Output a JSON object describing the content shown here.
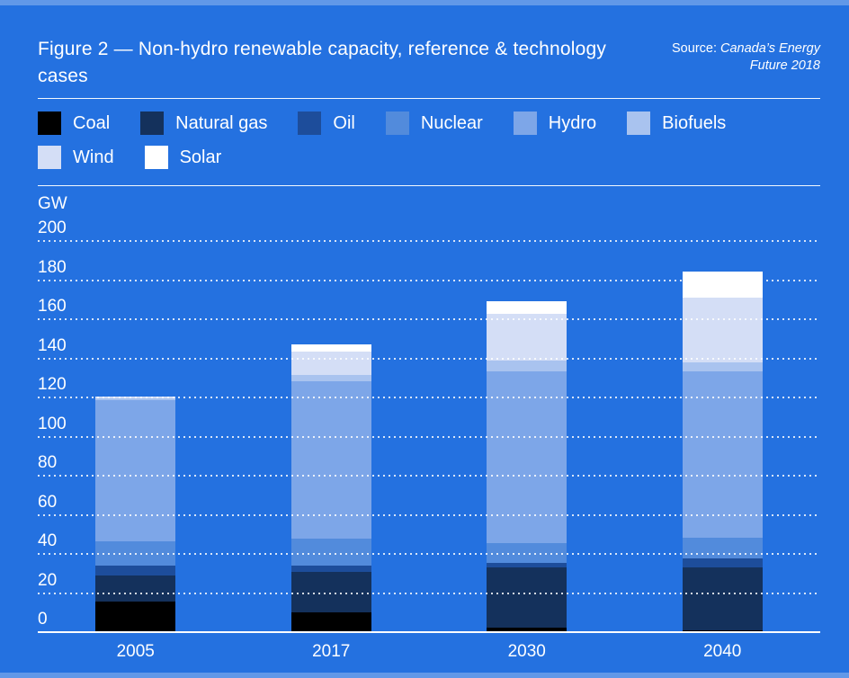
{
  "figure": {
    "title": "Figure 2 — Non-hydro renewable capacity, reference & technology cases",
    "source_prefix": "Source: ",
    "source_name": "Canada’s Energy Future 2018"
  },
  "chart_data": {
    "type": "bar",
    "stacked": true,
    "title": "Figure 2 — Non-hydro renewable capacity, reference & technology cases",
    "unit_label": "GW",
    "xlabel": "",
    "ylabel": "GW",
    "ylim": [
      0,
      200
    ],
    "ytick_step": 20,
    "gridlines": "dotted-white-horizontal",
    "legend_position": "top",
    "background_color": "#2471E0",
    "categories": [
      "2005",
      "2017",
      "2030",
      "2040"
    ],
    "series": [
      {
        "name": "Coal",
        "color": "#000000",
        "values": [
          15.5,
          10.0,
          2.5,
          1.0
        ]
      },
      {
        "name": "Natural gas",
        "color": "#14315C",
        "values": [
          13.5,
          20.5,
          31.0,
          32.0
        ]
      },
      {
        "name": "Oil",
        "color": "#1D4D9B",
        "values": [
          5.0,
          3.0,
          2.5,
          4.5
        ]
      },
      {
        "name": "Nuclear",
        "color": "#528BDC",
        "values": [
          12.5,
          14.0,
          10.0,
          10.5
        ]
      },
      {
        "name": "Hydro",
        "color": "#7DA6E8",
        "values": [
          72.0,
          80.5,
          88.0,
          85.0
        ]
      },
      {
        "name": "Biofuels",
        "color": "#A9C3EF",
        "values": [
          1.0,
          3.0,
          5.5,
          4.5
        ]
      },
      {
        "name": "Wind",
        "color": "#D4DEF6",
        "values": [
          1.0,
          12.0,
          24.0,
          33.0
        ]
      },
      {
        "name": "Solar",
        "color": "#FFFFFF",
        "values": [
          0.0,
          3.5,
          6.5,
          13.5
        ]
      }
    ],
    "totals": [
      120.5,
      146.5,
      170.0,
      184.0
    ]
  }
}
